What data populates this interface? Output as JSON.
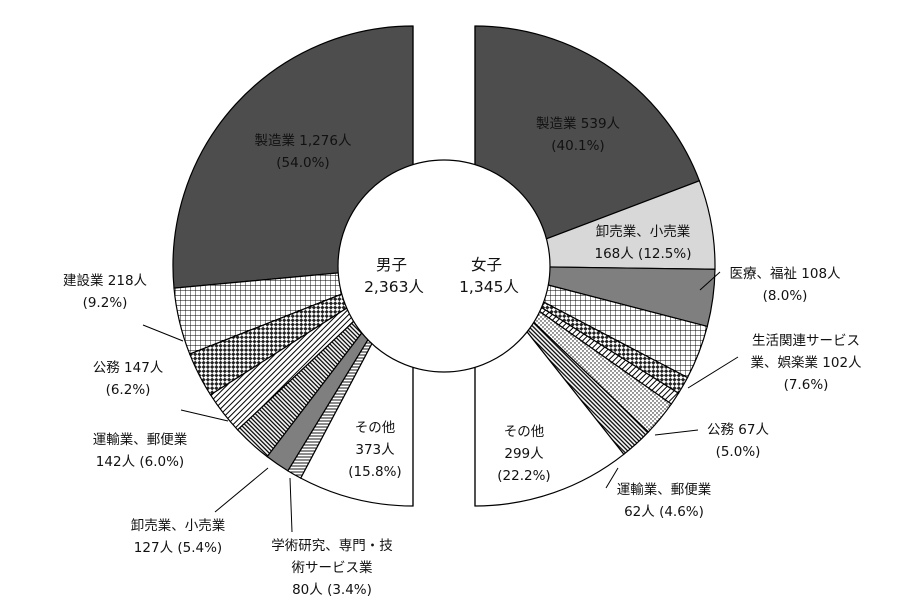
{
  "colors": {
    "dark": "#4d4d4d",
    "light": "#d8d8d8",
    "medium": "#7f7f7f",
    "white": "#ffffff",
    "outline": "#000000"
  },
  "chart_data": [
    {
      "type": "pie",
      "center_label": [
        "男子",
        "2,363人"
      ],
      "slices": [
        {
          "key": "m0",
          "name": "製造業",
          "value": 1276,
          "percent": 54.0,
          "pattern": "dark",
          "lines": [
            "製造業 1,276人",
            "(54.0%)"
          ]
        },
        {
          "key": "m1",
          "name": "建設業",
          "value": 218,
          "percent": 9.2,
          "pattern": "crosshatch",
          "lines": [
            "建設業 218人",
            "(9.2%)"
          ]
        },
        {
          "key": "m2",
          "name": "公務",
          "value": 147,
          "percent": 6.2,
          "pattern": "diag-checker",
          "lines": [
            "公務 147人",
            "(6.2%)"
          ]
        },
        {
          "key": "m3",
          "name": "運輸業、郵便業",
          "value": 142,
          "percent": 6.0,
          "pattern": "diag-lines",
          "lines": [
            "運輸業、郵便業",
            "142人 (6.0%)"
          ]
        },
        {
          "key": "m4",
          "name": "卸売業、小売業",
          "value": 127,
          "percent": 5.4,
          "pattern": "diag-dense",
          "lines": [
            "卸売業、小売業",
            "127人 (5.4%)"
          ]
        },
        {
          "key": "m5",
          "name": "学術研究、専門・技術サービス業",
          "value": 80,
          "percent": 3.4,
          "pattern": "medium",
          "lines": [
            "学術研究、専門・技",
            "術サービス業",
            "80人 (3.4%)"
          ]
        },
        {
          "key": "m6",
          "name": "(unlabeled)",
          "value": 0,
          "percent": 2.0,
          "pattern": "hlines",
          "lines": []
        },
        {
          "key": "m7",
          "name": "その他",
          "value": 373,
          "percent": 15.8,
          "pattern": "white",
          "lines": [
            "その他",
            "373人",
            "(15.8%)"
          ]
        }
      ]
    },
    {
      "type": "pie",
      "center_label": [
        "女子",
        "1,345人"
      ],
      "slices": [
        {
          "key": "f0",
          "name": "製造業",
          "value": 539,
          "percent": 40.1,
          "pattern": "dark",
          "lines": [
            "製造業 539人",
            "(40.1%)"
          ]
        },
        {
          "key": "f1",
          "name": "卸売業、小売業",
          "value": 168,
          "percent": 12.5,
          "pattern": "light",
          "lines": [
            "卸売業、小売業",
            "168人 (12.5%)"
          ]
        },
        {
          "key": "f2",
          "name": "医療、福祉",
          "value": 108,
          "percent": 8.0,
          "pattern": "medium",
          "lines": [
            "医療、福祉 108人",
            "(8.0%)"
          ]
        },
        {
          "key": "f3",
          "name": "生活関連サービス業、娯楽業",
          "value": 102,
          "percent": 7.6,
          "pattern": "crosshatch",
          "lines": [
            "生活関連サービス",
            "業、娯楽業 102人",
            "(7.6%)"
          ]
        },
        {
          "key": "f4",
          "name": "(unlabeled)",
          "value": 0,
          "percent": 2.5,
          "pattern": "diag-checker",
          "lines": []
        },
        {
          "key": "f5",
          "name": "(unlabeled)",
          "value": 0,
          "percent": 1.8,
          "pattern": "diag-lines",
          "lines": []
        },
        {
          "key": "f6",
          "name": "公務",
          "value": 67,
          "percent": 5.0,
          "pattern": "dots",
          "lines": [
            "公務 67人",
            "(5.0%)"
          ]
        },
        {
          "key": "f7",
          "name": "運輸業、郵便業",
          "value": 62,
          "percent": 4.6,
          "pattern": "diag-dense",
          "lines": [
            "運輸業、郵便業",
            "62人 (4.6%)"
          ]
        },
        {
          "key": "f8",
          "name": "その他",
          "value": 299,
          "percent": 22.2,
          "pattern": "white",
          "lines": [
            "その他",
            "299人",
            "(22.2%)"
          ]
        }
      ]
    }
  ]
}
